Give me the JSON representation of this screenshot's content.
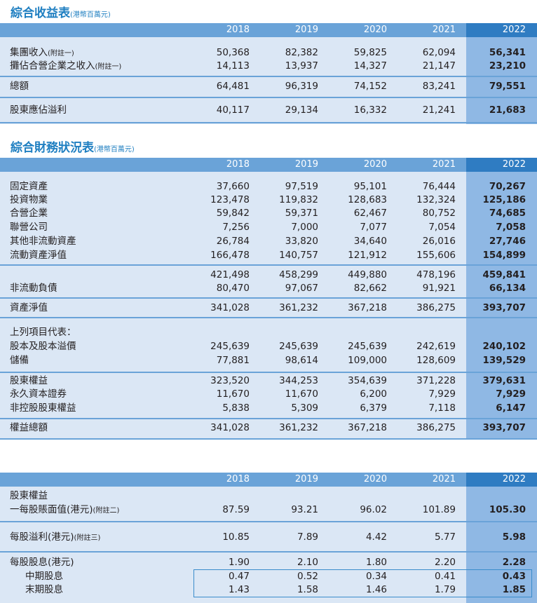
{
  "income": {
    "title": "綜合收益表",
    "unit": "(港幣百萬元)",
    "years": [
      "2018",
      "2019",
      "2020",
      "2021",
      "2022"
    ],
    "rows": [
      {
        "label": "集團收入",
        "note": "(附註一)",
        "values": [
          "50,368",
          "82,382",
          "59,825",
          "62,094",
          "56,341"
        ]
      },
      {
        "label": "攤佔合營企業之收入",
        "note": "(附註一)",
        "values": [
          "14,113",
          "13,937",
          "14,327",
          "21,147",
          "23,210"
        ]
      },
      {
        "label": "總額",
        "note": "",
        "values": [
          "64,481",
          "96,319",
          "74,152",
          "83,241",
          "79,551"
        ]
      },
      {
        "label": "股東應佔溢利",
        "note": "",
        "values": [
          "40,117",
          "29,134",
          "16,332",
          "21,241",
          "21,683"
        ]
      }
    ]
  },
  "balance": {
    "title": "綜合財務狀況表",
    "unit": "(港幣百萬元)",
    "years": [
      "2018",
      "2019",
      "2020",
      "2021",
      "2022"
    ],
    "rows": [
      {
        "label": "固定資產",
        "values": [
          "37,660",
          "97,519",
          "95,101",
          "76,444",
          "70,267"
        ]
      },
      {
        "label": "投資物業",
        "values": [
          "123,478",
          "119,832",
          "128,683",
          "132,324",
          "125,186"
        ]
      },
      {
        "label": "合營企業",
        "values": [
          "59,842",
          "59,371",
          "62,467",
          "80,752",
          "74,685"
        ]
      },
      {
        "label": "聯營公司",
        "values": [
          "7,256",
          "7,000",
          "7,077",
          "7,054",
          "7,058"
        ]
      },
      {
        "label": "其他非流動資產",
        "values": [
          "26,784",
          "33,820",
          "34,640",
          "26,016",
          "27,746"
        ]
      },
      {
        "label": "流動資產淨值",
        "values": [
          "166,478",
          "140,757",
          "121,912",
          "155,606",
          "154,899"
        ]
      },
      {
        "label": "",
        "values": [
          "421,498",
          "458,299",
          "449,880",
          "478,196",
          "459,841"
        ]
      },
      {
        "label": "非流動負債",
        "values": [
          "80,470",
          "97,067",
          "82,662",
          "91,921",
          "66,134"
        ]
      },
      {
        "label": "資產淨值",
        "values": [
          "341,028",
          "361,232",
          "367,218",
          "386,275",
          "393,707"
        ]
      },
      {
        "label": "上列項目代表：",
        "values": [
          "",
          "",
          "",
          "",
          ""
        ]
      },
      {
        "label": "股本及股本溢價",
        "values": [
          "245,639",
          "245,639",
          "245,639",
          "242,619",
          "240,102"
        ]
      },
      {
        "label": "儲備",
        "values": [
          "77,881",
          "98,614",
          "109,000",
          "128,609",
          "139,529"
        ]
      },
      {
        "label": "股東權益",
        "values": [
          "323,520",
          "344,253",
          "354,639",
          "371,228",
          "379,631"
        ]
      },
      {
        "label": "永久資本證券",
        "values": [
          "11,670",
          "11,670",
          "6,200",
          "7,929",
          "7,929"
        ]
      },
      {
        "label": "非控股股東權益",
        "values": [
          "5,838",
          "5,309",
          "6,379",
          "7,118",
          "6,147"
        ]
      },
      {
        "label": "權益總額",
        "values": [
          "341,028",
          "361,232",
          "367,218",
          "386,275",
          "393,707"
        ]
      }
    ]
  },
  "pershare": {
    "years": [
      "2018",
      "2019",
      "2020",
      "2021",
      "2022"
    ],
    "rows": [
      {
        "label": "股東權益",
        "note": "",
        "values": [
          "",
          "",
          "",
          "",
          ""
        ]
      },
      {
        "label": "一每股賬面值(港元)",
        "note": "(附註二)",
        "values": [
          "87.59",
          "93.21",
          "96.02",
          "101.89",
          "105.30"
        ]
      },
      {
        "label": "每股溢利(港元)",
        "note": "(附註三)",
        "values": [
          "10.85",
          "7.89",
          "4.42",
          "5.77",
          "5.98"
        ]
      },
      {
        "label": "每股股息(港元)",
        "note": "",
        "values": [
          "1.90",
          "2.10",
          "1.80",
          "2.20",
          "2.28"
        ]
      },
      {
        "label": "中期股息",
        "note": "",
        "values": [
          "0.47",
          "0.52",
          "0.34",
          "0.41",
          "0.43"
        ]
      },
      {
        "label": "末期股息",
        "note": "",
        "values": [
          "1.43",
          "1.58",
          "1.46",
          "1.79",
          "1.85"
        ]
      }
    ]
  },
  "colors": {
    "title": "#1f7fc1",
    "header": "#6aa3d8",
    "header_highlight": "#2f7cc2",
    "row_shade": "#dbe7f5",
    "column_band": "#8fb8e4"
  }
}
